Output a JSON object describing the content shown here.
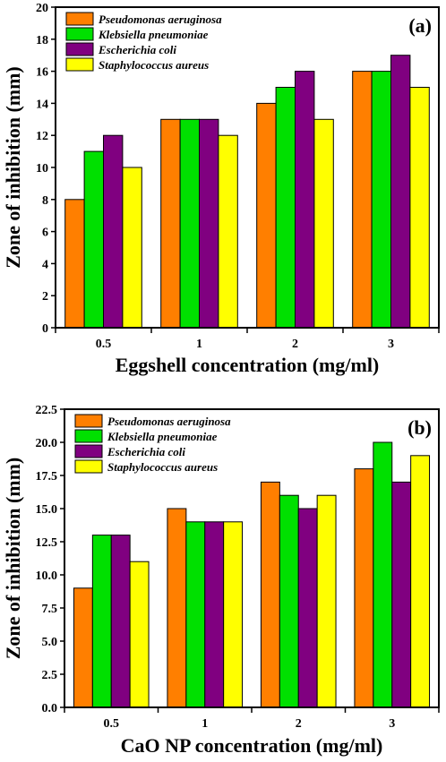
{
  "chart_data": [
    {
      "type": "bar",
      "panel_label": "(a)",
      "categories": [
        "0.5",
        "1",
        "2",
        "3"
      ],
      "series": [
        {
          "name": "Pseudomonas aeruginosa",
          "color": "#FF7F00",
          "values": [
            8,
            13,
            14,
            16
          ]
        },
        {
          "name": "Klebsiella pneumoniae",
          "color": "#00E000",
          "values": [
            11,
            13,
            15,
            16
          ]
        },
        {
          "name": "Escherichia coli",
          "color": "#800080",
          "values": [
            12,
            13,
            16,
            17
          ]
        },
        {
          "name": "Staphylococcus aureus",
          "color": "#FFFF00",
          "values": [
            10,
            12,
            13,
            15
          ]
        }
      ],
      "xlabel": "Eggshell concentration (mg/ml)",
      "ylabel": "Zone of inhibition (mm)",
      "ylim": [
        0,
        20
      ],
      "yticks": [
        "0",
        "2",
        "4",
        "6",
        "8",
        "10",
        "12",
        "14",
        "16",
        "18",
        "20"
      ],
      "legend_position": "top-left",
      "grid": false
    },
    {
      "type": "bar",
      "panel_label": "(b)",
      "categories": [
        "0.5",
        "1",
        "2",
        "3"
      ],
      "series": [
        {
          "name": "Pseudomonas aeruginosa",
          "color": "#FF7F00",
          "values": [
            9,
            15,
            17,
            18
          ]
        },
        {
          "name": "Klebsiella pneumoniae",
          "color": "#00E000",
          "values": [
            13,
            14,
            16,
            20
          ]
        },
        {
          "name": "Escherichia coli",
          "color": "#800080",
          "values": [
            13,
            14,
            15,
            17
          ]
        },
        {
          "name": "Staphylococcus aureus",
          "color": "#FFFF00",
          "values": [
            11,
            14,
            16,
            19
          ]
        }
      ],
      "xlabel": "CaO NP concentration (mg/ml)",
      "ylabel": "Zone of inhibition (mm)",
      "ylim": [
        0,
        22.5
      ],
      "yticks": [
        "0.0",
        "2.5",
        "5.0",
        "7.5",
        "10.0",
        "12.5",
        "15.0",
        "17.5",
        "20.0",
        "22.5"
      ],
      "legend_position": "top-left",
      "grid": false
    }
  ]
}
